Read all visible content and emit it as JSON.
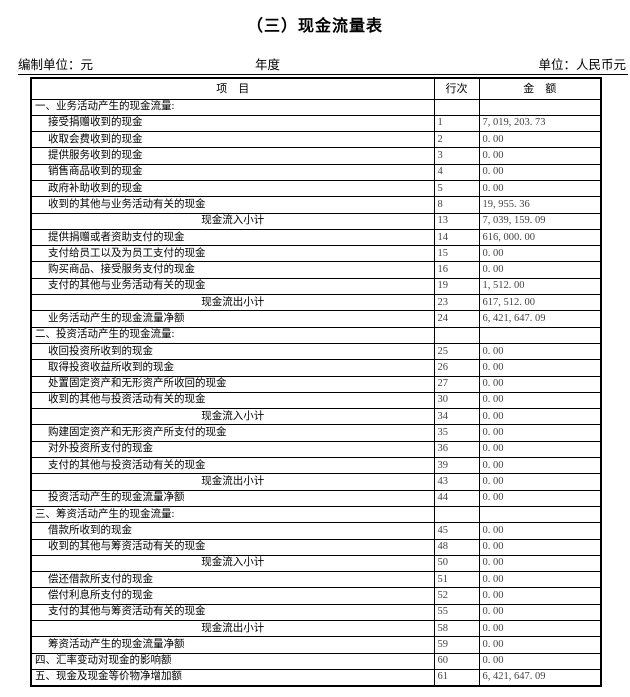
{
  "title": "（三）现金流量表",
  "meta": {
    "prepared_by": "编制单位：元",
    "year": "年度",
    "unit": "单位：人民币元"
  },
  "colors": {
    "text": "#000000",
    "number_text": "#444444",
    "border": "#000000",
    "background": "#ffffff"
  },
  "table": {
    "headers": {
      "item": "项　目",
      "line": "行次",
      "amount": "金　额"
    },
    "rows": [
      {
        "type": "section",
        "label": "一、业务活动产生的现金流量:",
        "line": "",
        "amount": ""
      },
      {
        "type": "item",
        "label": "接受捐赠收到的现金",
        "line": "1",
        "amount": "7, 019, 203. 73"
      },
      {
        "type": "item",
        "label": "收取会费收到的现金",
        "line": "2",
        "amount": "0. 00"
      },
      {
        "type": "item",
        "label": "提供服务收到的现金",
        "line": "3",
        "amount": "0. 00"
      },
      {
        "type": "item",
        "label": "销售商品收到的现金",
        "line": "4",
        "amount": "0. 00"
      },
      {
        "type": "item",
        "label": "政府补助收到的现金",
        "line": "5",
        "amount": "0. 00"
      },
      {
        "type": "item",
        "label": "收到的其他与业务活动有关的现金",
        "line": "8",
        "amount": "19, 955. 36"
      },
      {
        "type": "subtotal",
        "label": "现金流入小计",
        "line": "13",
        "amount": "7, 039, 159. 09"
      },
      {
        "type": "item",
        "label": "提供捐赠或者资助支付的现金",
        "line": "14",
        "amount": "616, 000. 00"
      },
      {
        "type": "item",
        "label": "支付给员工以及为员工支付的现金",
        "line": "15",
        "amount": "0. 00"
      },
      {
        "type": "item",
        "label": "购买商品、接受服务支付的现金",
        "line": "16",
        "amount": "0. 00"
      },
      {
        "type": "item",
        "label": "支付的其他与业务活动有关的现金",
        "line": "19",
        "amount": "1, 512. 00"
      },
      {
        "type": "subtotal",
        "label": "现金流出小计",
        "line": "23",
        "amount": "617, 512. 00"
      },
      {
        "type": "item",
        "label": "业务活动产生的现金流量净额",
        "line": "24",
        "amount": "6, 421, 647. 09"
      },
      {
        "type": "section",
        "label": "二、投资活动产生的现金流量:",
        "line": "",
        "amount": ""
      },
      {
        "type": "item",
        "label": "收回投资所收到的现金",
        "line": "25",
        "amount": "0. 00"
      },
      {
        "type": "item",
        "label": "取得投资收益所收到的现金",
        "line": "26",
        "amount": "0. 00"
      },
      {
        "type": "item",
        "label": "处置固定资产和无形资产所收回的现金",
        "line": "27",
        "amount": "0. 00"
      },
      {
        "type": "item",
        "label": "收到的其他与投资活动有关的现金",
        "line": "30",
        "amount": "0. 00"
      },
      {
        "type": "subtotal",
        "label": "现金流入小计",
        "line": "34",
        "amount": "0. 00"
      },
      {
        "type": "item",
        "label": "购建固定资产和无形资产所支付的现金",
        "line": "35",
        "amount": "0. 00"
      },
      {
        "type": "item",
        "label": "对外投资所支付的现金",
        "line": "36",
        "amount": "0. 00"
      },
      {
        "type": "item",
        "label": "支付的其他与投资活动有关的现金",
        "line": "39",
        "amount": "0. 00"
      },
      {
        "type": "subtotal",
        "label": "现金流出小计",
        "line": "43",
        "amount": "0. 00"
      },
      {
        "type": "item",
        "label": "投资活动产生的现金流量净额",
        "line": "44",
        "amount": "0. 00"
      },
      {
        "type": "section",
        "label": "三、筹资活动产生的现金流量:",
        "line": "",
        "amount": ""
      },
      {
        "type": "item",
        "label": "借款所收到的现金",
        "line": "45",
        "amount": "0. 00"
      },
      {
        "type": "item",
        "label": "收到的其他与筹资活动有关的现金",
        "line": "48",
        "amount": "0. 00"
      },
      {
        "type": "subtotal",
        "label": "现金流入小计",
        "line": "50",
        "amount": "0. 00"
      },
      {
        "type": "item",
        "label": "偿还借款所支付的现金",
        "line": "51",
        "amount": "0. 00"
      },
      {
        "type": "item",
        "label": "偿付利息所支付的现金",
        "line": "52",
        "amount": "0. 00"
      },
      {
        "type": "item",
        "label": "支付的其他与筹资活动有关的现金",
        "line": "55",
        "amount": "0. 00"
      },
      {
        "type": "subtotal",
        "label": "现金流出小计",
        "line": "58",
        "amount": "0. 00"
      },
      {
        "type": "item",
        "label": "筹资活动产生的现金流量净额",
        "line": "59",
        "amount": "0. 00"
      },
      {
        "type": "grand",
        "label": "四、汇率变动对现金的影响额",
        "line": "60",
        "amount": "0. 00"
      },
      {
        "type": "grand",
        "label": "五、现金及现金等价物净增加额",
        "line": "61",
        "amount": "6, 421, 647. 09"
      }
    ]
  }
}
